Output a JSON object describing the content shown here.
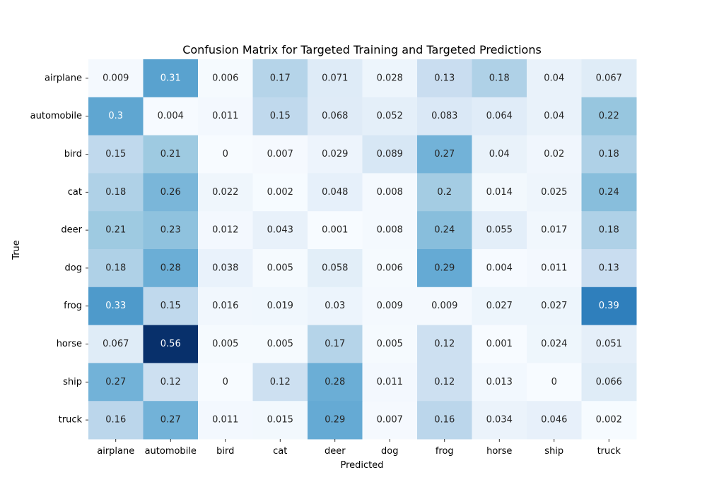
{
  "chart_data": {
    "type": "heatmap",
    "title": "Confusion Matrix for Targeted Training and Targeted Predictions",
    "xlabel": "Predicted",
    "ylabel": "True",
    "x_categories": [
      "airplane",
      "automobile",
      "bird",
      "cat",
      "deer",
      "dog",
      "frog",
      "horse",
      "ship",
      "truck"
    ],
    "y_categories": [
      "airplane",
      "automobile",
      "bird",
      "cat",
      "deer",
      "dog",
      "frog",
      "horse",
      "ship",
      "truck"
    ],
    "values": [
      [
        0.009,
        0.31,
        0.006,
        0.17,
        0.071,
        0.028,
        0.13,
        0.18,
        0.04,
        0.067
      ],
      [
        0.3,
        0.004,
        0.011,
        0.15,
        0.068,
        0.052,
        0.083,
        0.064,
        0.04,
        0.22
      ],
      [
        0.15,
        0.21,
        0,
        0.007,
        0.029,
        0.089,
        0.27,
        0.04,
        0.02,
        0.18
      ],
      [
        0.18,
        0.26,
        0.022,
        0.002,
        0.048,
        0.008,
        0.2,
        0.014,
        0.025,
        0.24
      ],
      [
        0.21,
        0.23,
        0.012,
        0.043,
        0.001,
        0.008,
        0.24,
        0.055,
        0.017,
        0.18
      ],
      [
        0.18,
        0.28,
        0.038,
        0.005,
        0.058,
        0.006,
        0.29,
        0.004,
        0.011,
        0.13
      ],
      [
        0.33,
        0.15,
        0.016,
        0.019,
        0.03,
        0.009,
        0.009,
        0.027,
        0.027,
        0.39
      ],
      [
        0.067,
        0.56,
        0.005,
        0.005,
        0.17,
        0.005,
        0.12,
        0.001,
        0.024,
        0.051
      ],
      [
        0.27,
        0.12,
        0,
        0.12,
        0.28,
        0.011,
        0.12,
        0.013,
        0,
        0.066
      ],
      [
        0.16,
        0.27,
        0.011,
        0.015,
        0.29,
        0.007,
        0.16,
        0.034,
        0.046,
        0.002
      ]
    ],
    "colormap": "Blues",
    "colorbar": false,
    "grid": false
  }
}
